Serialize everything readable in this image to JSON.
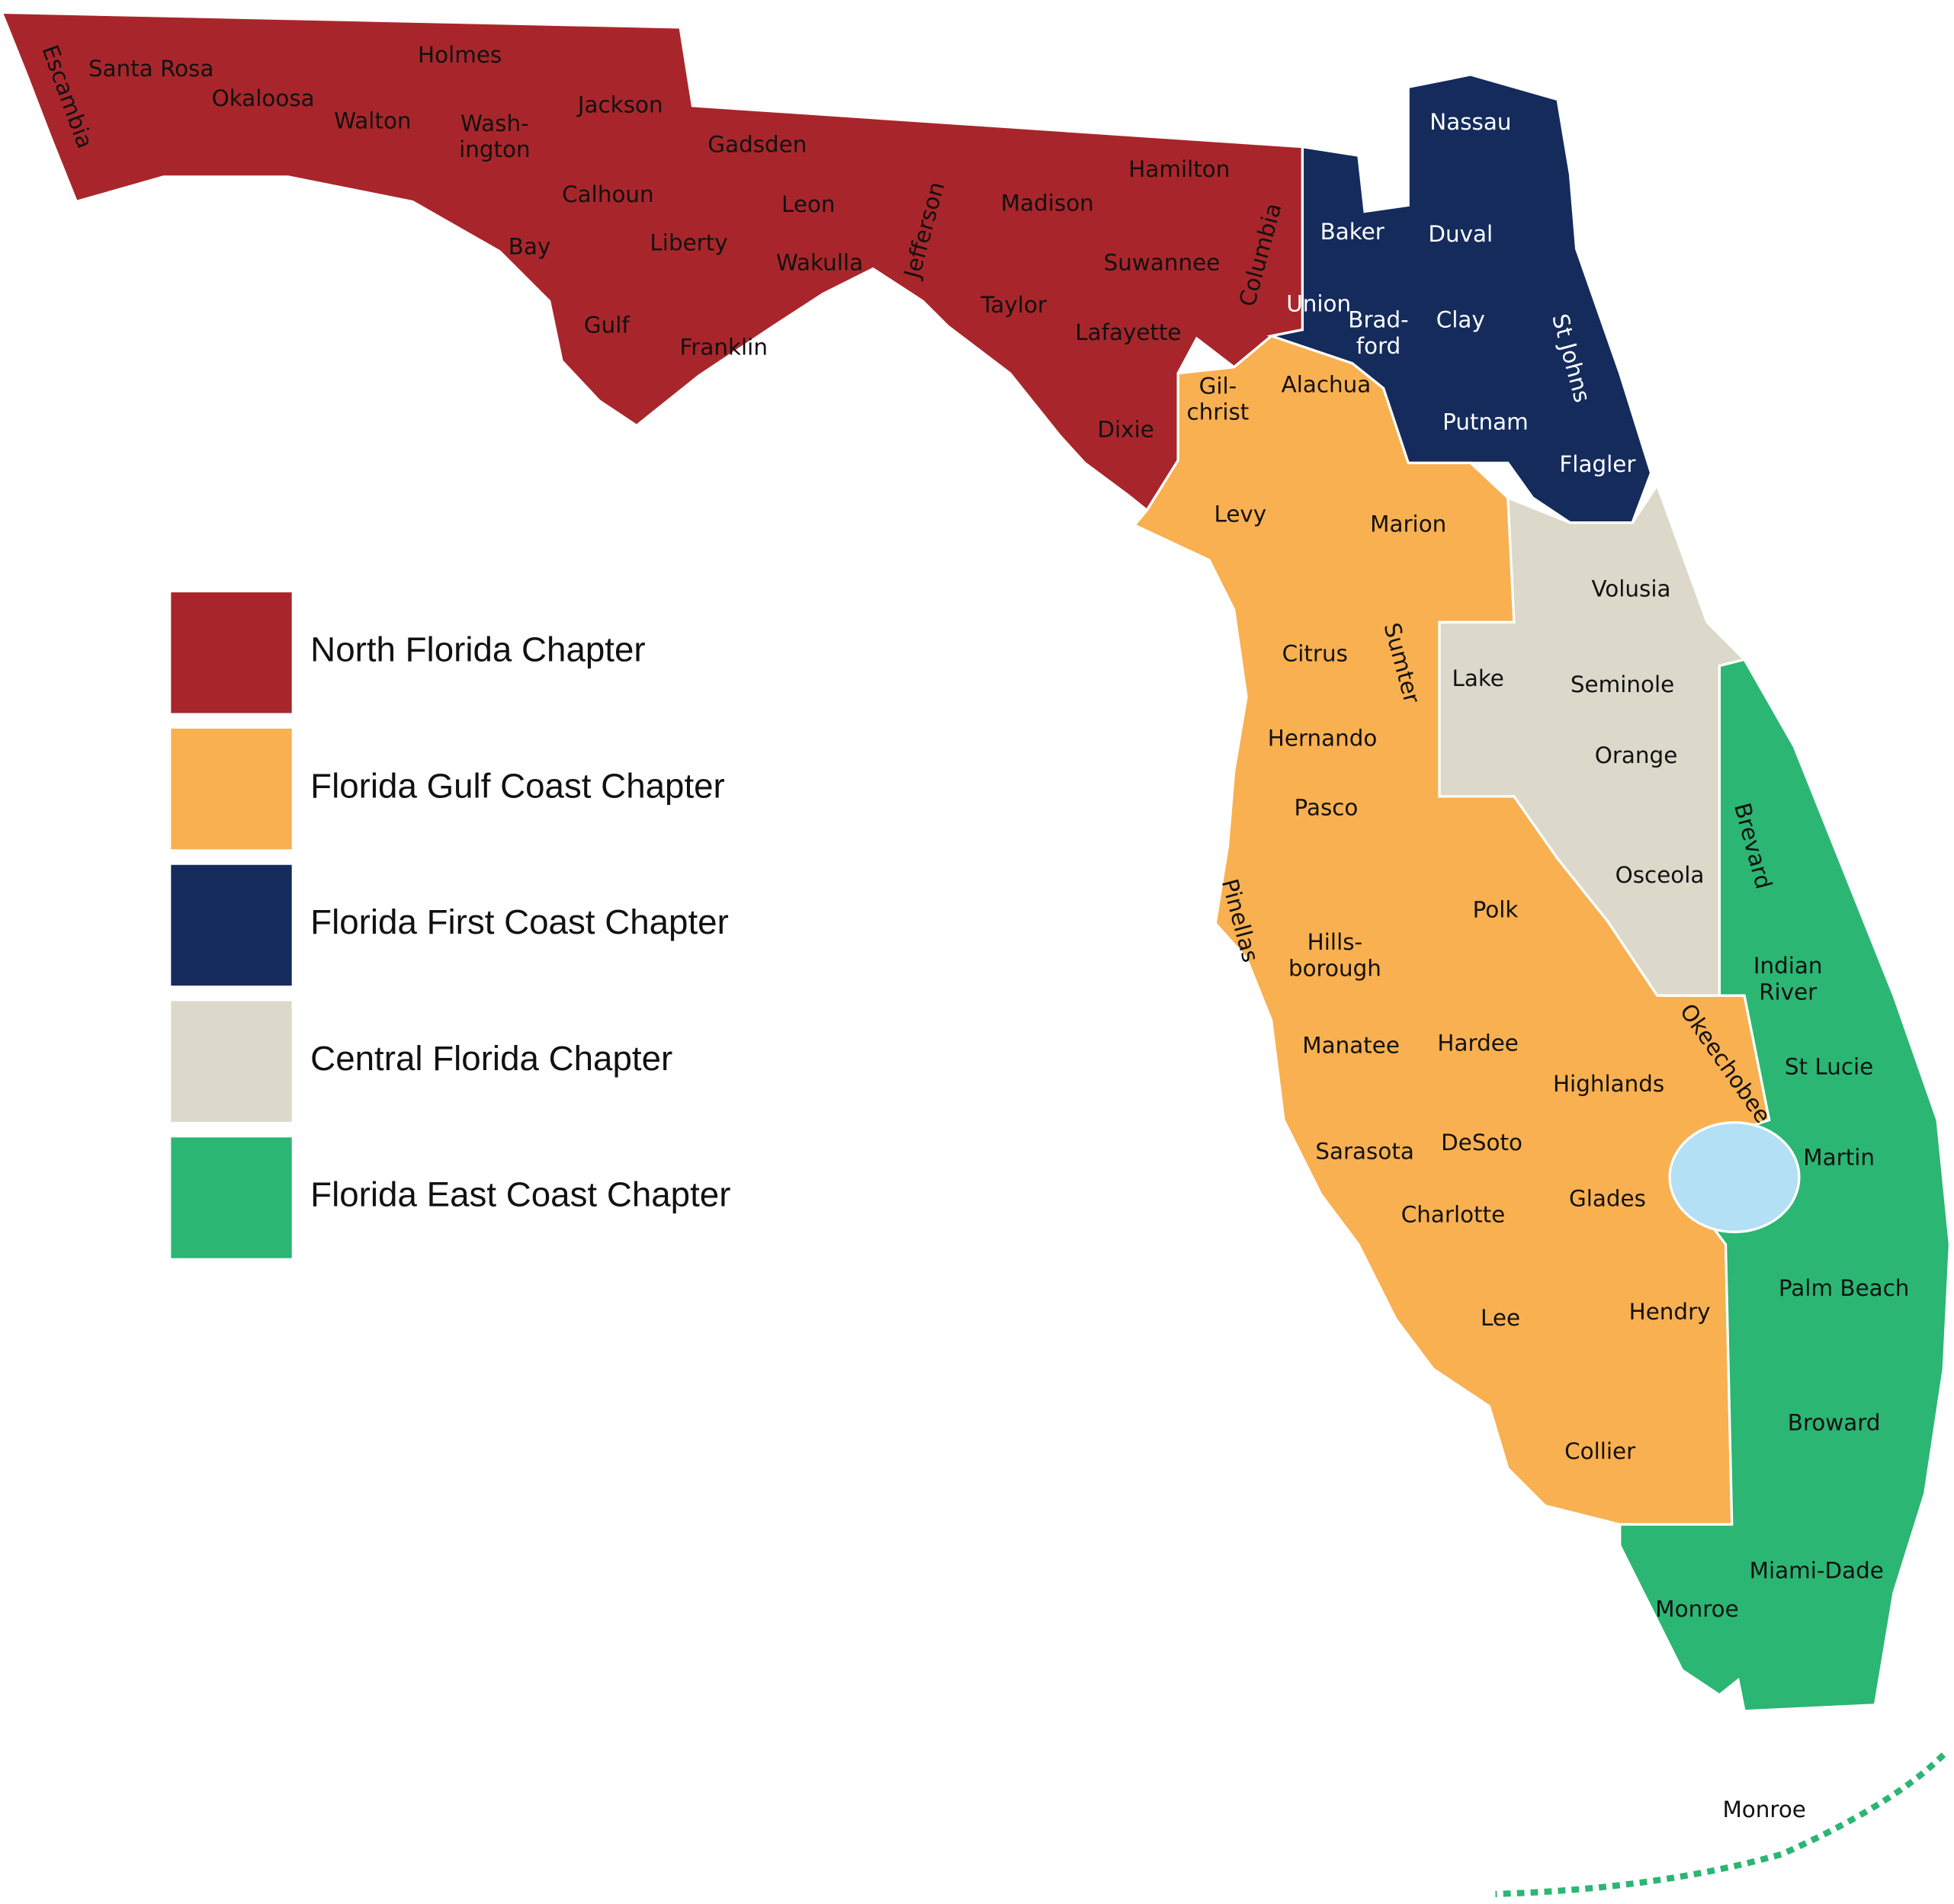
{
  "legend": [
    {
      "label": "North Florida Chapter",
      "color": "#a8262b"
    },
    {
      "label": "Florida Gulf Coast Chapter",
      "color": "#f9b050"
    },
    {
      "label": "Florida First Coast Chapter",
      "color": "#142b5c"
    },
    {
      "label": "Central Florida Chapter",
      "color": "#dcd9cb"
    },
    {
      "label": "Florida East Coast Chapter",
      "color": "#2bb673"
    }
  ],
  "counties": [
    [
      "Escambia"
    ],
    [
      "Santa Rosa"
    ],
    [
      "Okaloosa"
    ],
    [
      "Walton"
    ],
    [
      "Holmes"
    ],
    [
      "Wash-",
      "ington"
    ],
    [
      "Jackson"
    ],
    [
      "Calhoun"
    ],
    [
      "Bay"
    ],
    [
      "Gadsden"
    ],
    [
      "Leon"
    ],
    [
      "Liberty"
    ],
    [
      "Wakulla"
    ],
    [
      "Jefferson"
    ],
    [
      "Madison"
    ],
    [
      "Hamilton"
    ],
    [
      "Suwannee"
    ],
    [
      "Columbia"
    ],
    [
      "Taylor"
    ],
    [
      "Lafayette"
    ],
    [
      "Gulf"
    ],
    [
      "Franklin"
    ],
    [
      "Dixie"
    ],
    [
      "Nassau"
    ],
    [
      "Baker"
    ],
    [
      "Duval"
    ],
    [
      "Union"
    ],
    [
      "Brad-",
      "ford"
    ],
    [
      "Clay"
    ],
    [
      "St Johns"
    ],
    [
      "Putnam"
    ],
    [
      "Flagler"
    ],
    [
      "Gil-",
      "christ"
    ],
    [
      "Alachua"
    ],
    [
      "Levy"
    ],
    [
      "Marion"
    ],
    [
      "Volusia"
    ],
    [
      "Citrus"
    ],
    [
      "Sumter"
    ],
    [
      "Lake"
    ],
    [
      "Seminole"
    ],
    [
      "Hernando"
    ],
    [
      "Orange"
    ],
    [
      "Pasco"
    ],
    [
      "Brevard"
    ],
    [
      "Osceola"
    ],
    [
      "Pinellas"
    ],
    [
      "Polk"
    ],
    [
      "Hills-",
      "borough"
    ],
    [
      "Indian",
      "River"
    ],
    [
      "Manatee"
    ],
    [
      "Hardee"
    ],
    [
      "Okeechobee"
    ],
    [
      "St Lucie"
    ],
    [
      "Highlands"
    ],
    [
      "Sarasota"
    ],
    [
      "DeSoto"
    ],
    [
      "Martin"
    ],
    [
      "Glades"
    ],
    [
      "Charlotte"
    ],
    [
      "Palm Beach"
    ],
    [
      "Lee"
    ],
    [
      "Hendry"
    ],
    [
      "Broward"
    ],
    [
      "Collier"
    ],
    [
      "Miami-Dade"
    ],
    [
      "Monroe"
    ],
    [
      "Monroe"
    ]
  ]
}
